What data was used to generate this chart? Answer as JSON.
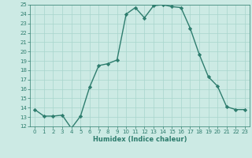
{
  "x": [
    0,
    1,
    2,
    3,
    4,
    5,
    6,
    7,
    8,
    9,
    10,
    11,
    12,
    13,
    14,
    15,
    16,
    17,
    18,
    19,
    20,
    21,
    22,
    23
  ],
  "y": [
    13.8,
    13.1,
    13.1,
    13.2,
    11.8,
    13.1,
    16.2,
    18.5,
    18.7,
    19.1,
    24.0,
    24.7,
    23.6,
    24.9,
    25.0,
    24.8,
    24.7,
    22.5,
    19.7,
    17.3,
    16.3,
    14.1,
    13.8,
    13.8
  ],
  "xlabel": "Humidex (Indice chaleur)",
  "ylim": [
    12,
    25
  ],
  "xlim": [
    -0.5,
    23.5
  ],
  "yticks": [
    12,
    13,
    14,
    15,
    16,
    17,
    18,
    19,
    20,
    21,
    22,
    23,
    24,
    25
  ],
  "xticks": [
    0,
    1,
    2,
    3,
    4,
    5,
    6,
    7,
    8,
    9,
    10,
    11,
    12,
    13,
    14,
    15,
    16,
    17,
    18,
    19,
    20,
    21,
    22,
    23
  ],
  "line_color": "#2e7d6e",
  "bg_color": "#cceae4",
  "grid_color": "#a8d5cc",
  "marker": "D",
  "markersize": 2.2,
  "linewidth": 1.0,
  "tick_fontsize": 5.0,
  "xlabel_fontsize": 6.0
}
